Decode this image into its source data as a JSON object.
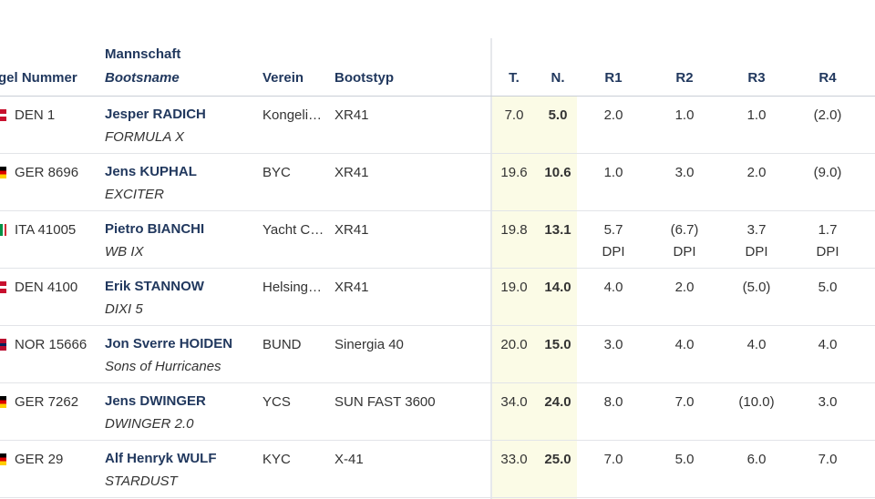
{
  "table": {
    "headers": {
      "sail_number": "gel Nummer",
      "crew": "Mannschaft",
      "boat_name": "Bootsname",
      "club": "Verein",
      "boat_type": "Bootstyp",
      "total": "T.",
      "net": "N.",
      "r1": "R1",
      "r2": "R2",
      "r3": "R3",
      "r4": "R4"
    },
    "rows": [
      {
        "flag": "den",
        "sail": "DEN 1",
        "skipper": "Jesper RADICH",
        "boat": "FORMULA X",
        "club": "Kongeli…",
        "type": "XR41",
        "total": "7.0",
        "net": "5.0",
        "r1": "2.0",
        "r2": "1.0",
        "r3": "1.0",
        "r4": "(2.0)",
        "codes": [
          "",
          "",
          "",
          ""
        ]
      },
      {
        "flag": "ger",
        "sail": "GER 8696",
        "skipper": "Jens KUPHAL",
        "boat": "EXCITER",
        "club": "BYC",
        "type": "XR41",
        "total": "19.6",
        "net": "10.6",
        "r1": "1.0",
        "r2": "3.0",
        "r3": "2.0",
        "r4": "(9.0)",
        "codes": [
          "",
          "",
          "",
          ""
        ]
      },
      {
        "flag": "ita",
        "sail": "ITA 41005",
        "skipper": "Pietro BIANCHI",
        "boat": "WB IX",
        "club": "Yacht C…",
        "type": "XR41",
        "total": "19.8",
        "net": "13.1",
        "r1": "5.7",
        "r2": "(6.7)",
        "r3": "3.7",
        "r4": "1.7",
        "codes": [
          "DPI",
          "DPI",
          "DPI",
          "DPI"
        ]
      },
      {
        "flag": "den",
        "sail": "DEN 4100",
        "skipper": "Erik STANNOW",
        "boat": "DIXI 5",
        "club": "Helsing…",
        "type": "XR41",
        "total": "19.0",
        "net": "14.0",
        "r1": "4.0",
        "r2": "2.0",
        "r3": "(5.0)",
        "r4": "5.0",
        "codes": [
          "",
          "",
          "",
          ""
        ]
      },
      {
        "flag": "nor",
        "sail": "NOR 15666",
        "skipper": "Jon Sverre HOIDEN",
        "boat": "Sons of Hurricanes",
        "club": "BUND",
        "type": "Sinergia 40",
        "total": "20.0",
        "net": "15.0",
        "r1": "3.0",
        "r2": "4.0",
        "r3": "4.0",
        "r4": "4.0",
        "codes": [
          "",
          "",
          "",
          ""
        ]
      },
      {
        "flag": "ger",
        "sail": "GER 7262",
        "skipper": "Jens DWINGER",
        "boat": "DWINGER 2.0",
        "club": "YCS",
        "type": "SUN FAST 3600",
        "total": "34.0",
        "net": "24.0",
        "r1": "8.0",
        "r2": "7.0",
        "r3": "(10.0)",
        "r4": "3.0",
        "codes": [
          "",
          "",
          "",
          ""
        ]
      },
      {
        "flag": "ger",
        "sail": "GER 29",
        "skipper": "Alf Henryk WULF",
        "boat": "STARDUST",
        "club": "KYC",
        "type": "X-41",
        "total": "33.0",
        "net": "25.0",
        "r1": "7.0",
        "r2": "5.0",
        "r3": "6.0",
        "r4": "7.0",
        "codes": [
          "",
          "",
          "",
          ""
        ]
      }
    ]
  }
}
